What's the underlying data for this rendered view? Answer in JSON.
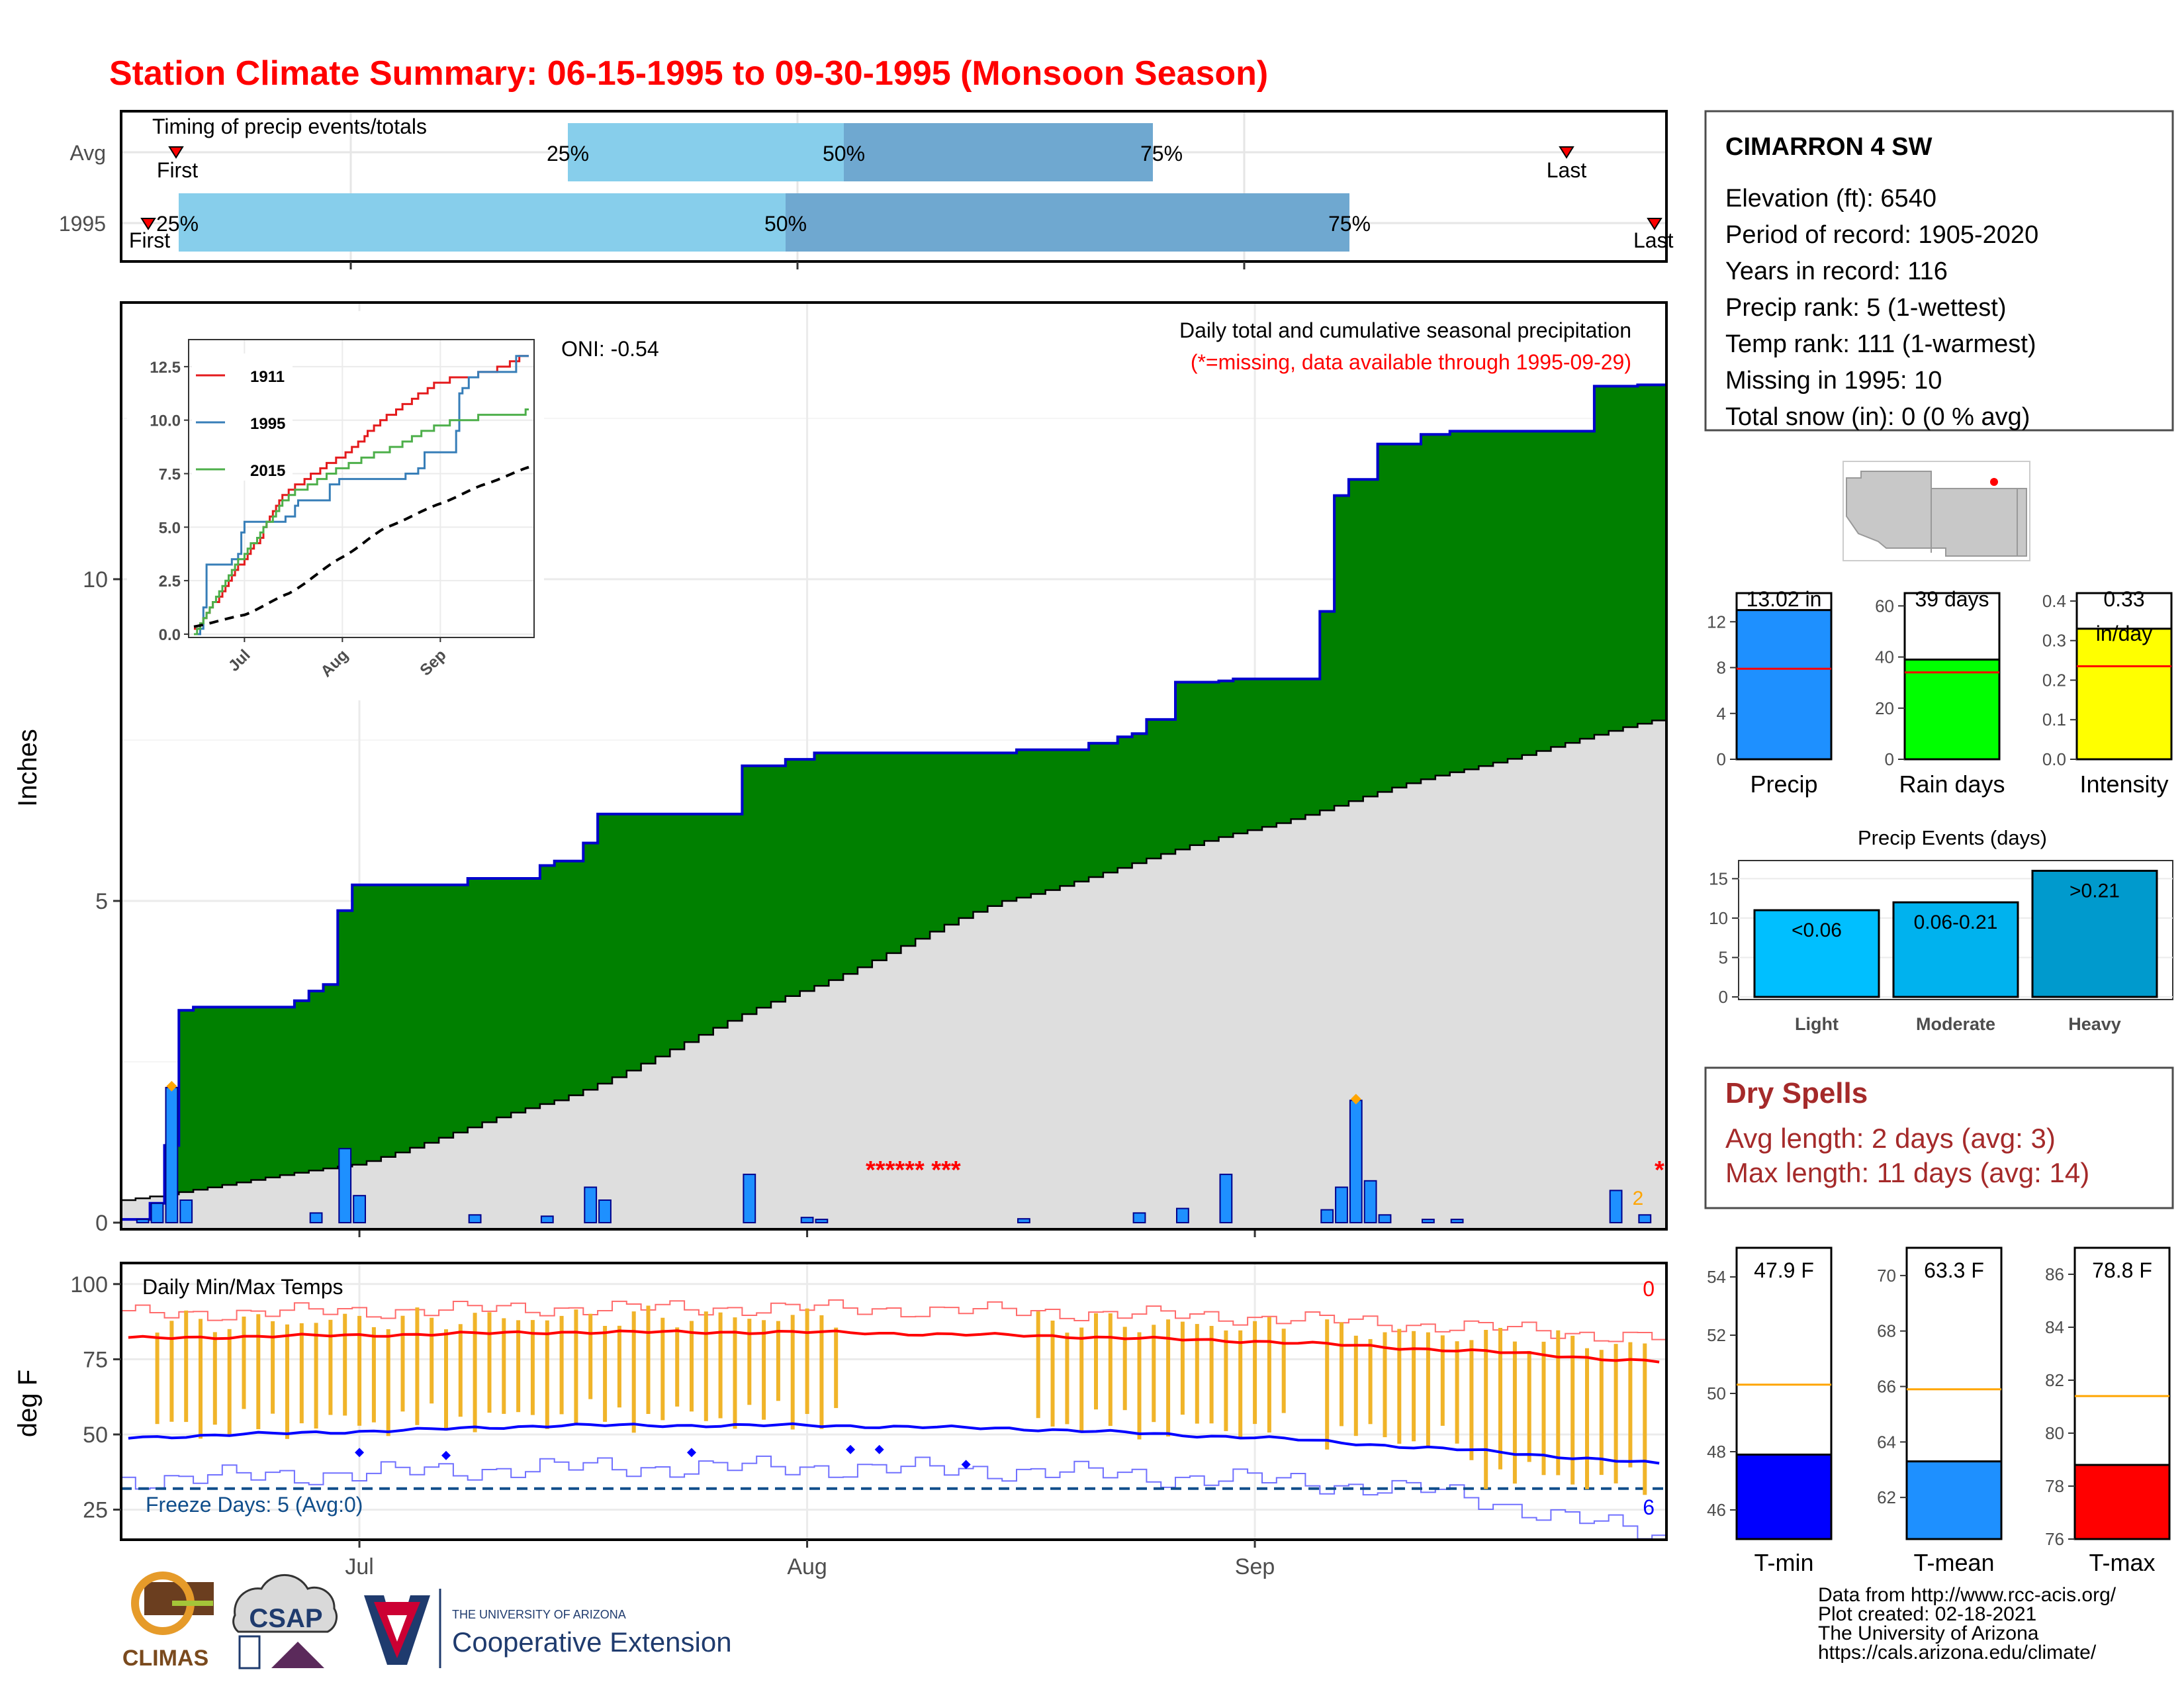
{
  "title": "Station Climate Summary: 06-15-1995 to 09-30-1995 (Monsoon Season)",
  "colors": {
    "title": "#ff0000",
    "precip_fill": "#008000",
    "cumul_line": "#0000cd",
    "normal_fill": "#dedede",
    "daily_bar": "#1e90ff",
    "timing_light": "#87ceeb",
    "timing_dark": "#6fa8d0",
    "dryspell": "#a52a2a",
    "tmax": "#ff0000",
    "tmin": "#0000ff",
    "range_bar": "#f0b429",
    "tmean": "#1e90ff"
  },
  "timing": {
    "title": "Timing of precip events/totals",
    "rows": [
      {
        "label": "Avg",
        "first": "First",
        "last": "Last",
        "p25": "25%",
        "p50": "50%",
        "p75": "75%"
      },
      {
        "label": "1995",
        "first": "First",
        "last": "Last",
        "p25": "25%",
        "p50": "50%",
        "p75": "75%"
      }
    ]
  },
  "station": {
    "name": "CIMARRON 4 SW",
    "lines": [
      "Elevation (ft): 6540",
      "Period of record: 1905-2020",
      "Years in record: 116",
      "Precip rank: 5 (1-wettest)",
      "Temp rank: 111 (1-warmest)",
      "Missing in 1995: 10",
      "Total snow (in): 0 (0 % avg)"
    ]
  },
  "main_chart": {
    "ylabel": "Inches",
    "oni": "ONI: -0.54",
    "caption": "Daily total and cumulative seasonal precipitation",
    "missing_note": "(*=missing, data available through 1995-09-29)",
    "missing_marks_1": "****** ***",
    "missing_marks_2": "*",
    "orange_count": "2",
    "yticks": [
      "0",
      "5",
      "10"
    ],
    "xticks": [
      "Jul",
      "Aug",
      "Sep"
    ]
  },
  "inset": {
    "yticks": [
      "0.0",
      "2.5",
      "5.0",
      "7.5",
      "10.0",
      "12.5"
    ],
    "xticks": [
      "Jul",
      "Aug",
      "Sep"
    ],
    "legend": [
      "1911",
      "1995",
      "2015"
    ]
  },
  "bars_small": {
    "precip": {
      "label": "Precip",
      "value_text": "13.02 in",
      "yticks": [
        "0",
        "4",
        "8",
        "12"
      ]
    },
    "raindays": {
      "label": "Rain days",
      "value_text": "39 days",
      "yticks": [
        "0",
        "20",
        "40",
        "60"
      ]
    },
    "intensity": {
      "label": "Intensity",
      "value_text": "0.33",
      "unit": "in/day",
      "yticks": [
        "0.0",
        "0.1",
        "0.2",
        "0.3",
        "0.4"
      ]
    }
  },
  "events": {
    "title": "Precip Events (days)",
    "yticks": [
      "0",
      "5",
      "10",
      "15"
    ],
    "bars": [
      {
        "label": "Light",
        "text": "<0.06",
        "value": 11
      },
      {
        "label": "Moderate",
        "text": "0.06-0.21",
        "value": 12
      },
      {
        "label": "Heavy",
        "text": ">0.21",
        "value": 16
      }
    ]
  },
  "dryspells": {
    "title": "Dry Spells",
    "avg": "Avg length: 2 days (avg: 3)",
    "max": "Max length: 11 days (avg: 14)"
  },
  "temps": {
    "ylabel": "deg F",
    "title": "Daily Min/Max Temps",
    "freeze": "Freeze Days: 5 (Avg:0)",
    "count_top": "0",
    "count_bottom": "6",
    "yticks": [
      "25",
      "50",
      "75",
      "100"
    ],
    "xticks": [
      "Jul",
      "Aug",
      "Sep"
    ]
  },
  "temp_bars": {
    "tmin": {
      "label": "T-min",
      "value_text": "47.9 F",
      "yticks": [
        "46",
        "48",
        "50",
        "52",
        "54"
      ]
    },
    "tmean": {
      "label": "T-mean",
      "value_text": "63.3 F",
      "yticks": [
        "62",
        "64",
        "66",
        "68",
        "70"
      ]
    },
    "tmax": {
      "label": "T-max",
      "value_text": "78.8 F",
      "yticks": [
        "76",
        "78",
        "80",
        "82",
        "84",
        "86"
      ]
    }
  },
  "footer": [
    "Data from http://www.rcc-acis.org/",
    "Plot created: 02-18-2021",
    "The University of Arizona",
    "https://cals.arizona.edu/climate/"
  ],
  "logos": {
    "climas": "CLIMAS",
    "csap": "CSAP",
    "ua_small": "THE UNIVERSITY OF ARIZONA",
    "ua_big": "Cooperative Extension"
  },
  "chart_data": {
    "type": "area",
    "title": "Daily total and cumulative seasonal precipitation",
    "ylabel": "Inches",
    "ylim": [
      0,
      14.3
    ],
    "x_range": [
      "1995-06-15",
      "1995-09-30"
    ],
    "cumulative_1995": {
      "x": [
        "06-15",
        "06-17",
        "06-18",
        "06-19",
        "06-20",
        "06-27",
        "06-28",
        "06-29",
        "06-30",
        "07-01",
        "07-09",
        "07-14",
        "07-15",
        "07-17",
        "07-18",
        "07-28",
        "07-31",
        "08-02",
        "08-16",
        "08-21",
        "08-23",
        "08-24",
        "08-25",
        "08-27",
        "08-30",
        "08-31",
        "09-06",
        "09-07",
        "09-08",
        "09-10",
        "09-13",
        "09-15",
        "09-25",
        "09-28",
        "09-29"
      ],
      "y": [
        0.05,
        0.3,
        1.2,
        3.3,
        3.35,
        3.45,
        3.6,
        3.7,
        4.85,
        5.25,
        5.35,
        5.55,
        5.62,
        5.9,
        6.35,
        7.1,
        7.2,
        7.3,
        7.35,
        7.45,
        7.55,
        7.6,
        7.82,
        8.4,
        8.42,
        8.45,
        9.5,
        11.3,
        11.55,
        12.1,
        12.25,
        12.3,
        13.0,
        13.02,
        13.02
      ]
    },
    "daily_1995": {
      "x": [
        "06-16",
        "06-17",
        "06-18",
        "06-19",
        "06-28",
        "06-30",
        "07-01",
        "07-09",
        "07-14",
        "07-17",
        "07-18",
        "07-28",
        "08-01",
        "08-02",
        "08-16",
        "08-24",
        "08-27",
        "08-30",
        "09-06",
        "09-07",
        "09-08",
        "09-09",
        "09-10",
        "09-13",
        "09-15",
        "09-26",
        "09-28"
      ],
      "y": [
        0.05,
        0.3,
        2.1,
        0.35,
        0.15,
        1.15,
        0.42,
        0.12,
        0.1,
        0.55,
        0.35,
        0.75,
        0.08,
        0.05,
        0.06,
        0.15,
        0.22,
        0.75,
        0.2,
        0.55,
        1.9,
        0.65,
        0.12,
        0.05,
        0.05,
        0.5,
        0.12
      ]
    },
    "normal_cumulative": {
      "x": [
        "06-15",
        "07-01",
        "07-15",
        "08-01",
        "08-15",
        "09-01",
        "09-15",
        "09-30"
      ],
      "y": [
        0.35,
        0.9,
        1.9,
        3.6,
        5.0,
        6.1,
        7.0,
        7.85
      ]
    },
    "inset_series": [
      {
        "name": "1911",
        "x": [
          "06-15",
          "07-01",
          "07-15",
          "08-01",
          "08-15",
          "09-01",
          "09-15",
          "09-30"
        ],
        "y": [
          0.2,
          3.5,
          6.8,
          8.3,
          10.2,
          11.8,
          12.2,
          13.1
        ]
      },
      {
        "name": "1995",
        "x": [
          "06-15",
          "07-01",
          "07-15",
          "08-01",
          "08-15",
          "09-01",
          "09-15",
          "09-30"
        ],
        "y": [
          0.05,
          5.25,
          6.35,
          7.2,
          7.35,
          8.4,
          12.3,
          13.02
        ]
      },
      {
        "name": "2015",
        "x": [
          "06-15",
          "07-01",
          "07-15",
          "08-01",
          "08-15",
          "09-01",
          "09-15",
          "09-30"
        ],
        "y": [
          0.1,
          3.8,
          6.5,
          7.8,
          8.6,
          9.8,
          10.2,
          10.4
        ]
      }
    ],
    "temperature": {
      "ylabel": "deg F",
      "ylim": [
        15,
        107
      ],
      "avg_tmax": {
        "x": [
          "06-15",
          "07-01",
          "07-15",
          "08-01",
          "08-15",
          "09-01",
          "09-15",
          "09-30"
        ],
        "y": [
          82,
          83,
          84,
          84,
          83,
          81,
          78,
          74
        ]
      },
      "avg_tmin": {
        "x": [
          "06-15",
          "07-01",
          "07-15",
          "08-01",
          "08-15",
          "09-01",
          "09-15",
          "09-30"
        ],
        "y": [
          49,
          51,
          53,
          53,
          52,
          49,
          45,
          40
        ]
      },
      "freeze_line": 32
    },
    "summary_bars": {
      "precip_in": {
        "value": 13.02,
        "avg": 7.9,
        "ylim": [
          0,
          14.5
        ]
      },
      "rain_days": {
        "value": 39,
        "avg": 34,
        "ylim": [
          0,
          65
        ]
      },
      "intensity": {
        "value": 0.33,
        "avg": 0.235,
        "ylim": [
          0,
          0.42
        ]
      },
      "tmin_F": {
        "value": 47.9,
        "avg": 50.3,
        "ylim": [
          45,
          55
        ]
      },
      "tmean_F": {
        "value": 63.3,
        "avg": 65.9,
        "ylim": [
          60.5,
          71
        ]
      },
      "tmax_F": {
        "value": 78.8,
        "avg": 81.4,
        "ylim": [
          76,
          87
        ]
      }
    }
  }
}
